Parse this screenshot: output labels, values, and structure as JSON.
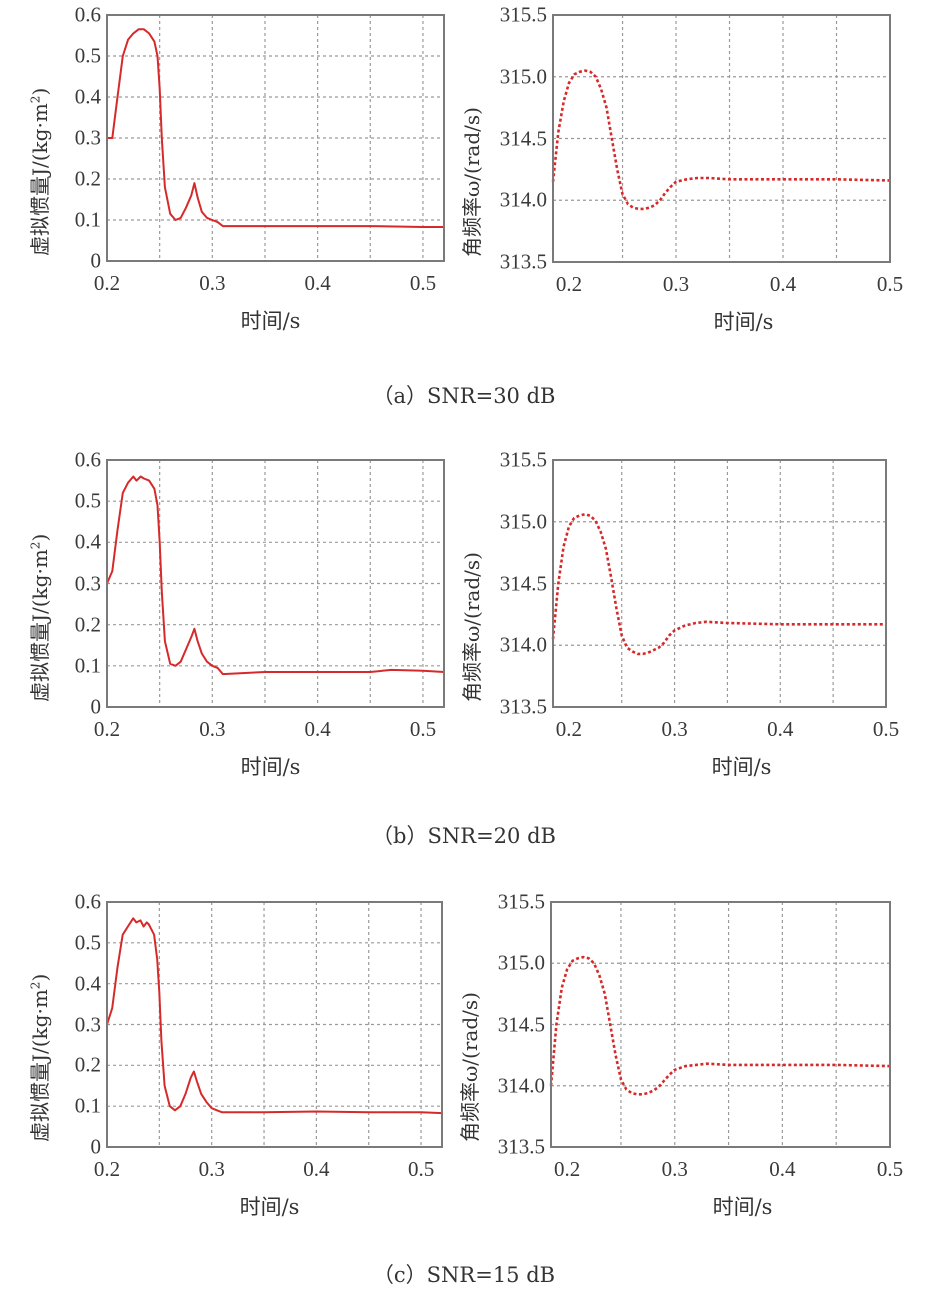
{
  "figure": {
    "panels": [
      {
        "id": "a",
        "caption_prefix": "（a）",
        "caption_text": "SNR=30 dB",
        "left": {
          "ylabel": "虚拟惯量J/(kg·m²)",
          "ylabel_main": "虚拟惯量J/(kg·m",
          "ylabel_sup": "2",
          "ylabel_tail": ")",
          "xlabel": "时间/s",
          "yticks": [
            "0",
            "0.1",
            "0.2",
            "0.3",
            "0.4",
            "0.5",
            "0.6"
          ],
          "xticks": [
            "0.2",
            "0.3",
            "0.4",
            "0.5"
          ]
        },
        "right": {
          "ylabel": "角频率ω/(rad/s)",
          "xlabel": "时间/s",
          "yticks": [
            "313.5",
            "314.0",
            "314.5",
            "315.0",
            "315.5"
          ],
          "xticks": [
            "0.2",
            "0.3",
            "0.4",
            "0.5"
          ]
        }
      },
      {
        "id": "b",
        "caption_prefix": "（b）",
        "caption_text": "SNR=20 dB",
        "left": {
          "ylabel": "虚拟惯量J/(kg·m²)",
          "ylabel_main": "虚拟惯量J/(kg·m",
          "ylabel_sup": "2",
          "ylabel_tail": ")",
          "xlabel": "时间/s",
          "yticks": [
            "0",
            "0.1",
            "0.2",
            "0.3",
            "0.4",
            "0.5",
            "0.6"
          ],
          "xticks": [
            "0.2",
            "0.3",
            "0.4",
            "0.5"
          ]
        },
        "right": {
          "ylabel": "角频率ω/(rad/s)",
          "xlabel": "时间/s",
          "yticks": [
            "313.5",
            "314.0",
            "314.5",
            "315.0",
            "315.5"
          ],
          "xticks": [
            "0.2",
            "0.3",
            "0.4",
            "0.5"
          ]
        }
      },
      {
        "id": "c",
        "caption_prefix": "（c）",
        "caption_text": "SNR=15 dB",
        "left": {
          "ylabel": "虚拟惯量J/(kg·m²)",
          "ylabel_main": "虚拟惯量J/(kg·m",
          "ylabel_sup": "2",
          "ylabel_tail": ")",
          "xlabel": "时间/s",
          "yticks": [
            "0",
            "0.1",
            "0.2",
            "0.3",
            "0.4",
            "0.5",
            "0.6"
          ],
          "xticks": [
            "0.2",
            "0.3",
            "0.4",
            "0.5"
          ]
        },
        "right": {
          "ylabel": "角频率ω/(rad/s)",
          "xlabel": "时间/s",
          "yticks": [
            "313.5",
            "314.0",
            "314.5",
            "315.0",
            "315.5"
          ],
          "xticks": [
            "0.2",
            "0.3",
            "0.4",
            "0.5"
          ]
        }
      }
    ]
  },
  "colors": {
    "line": "#d62a2a",
    "grid": "#9a9a9a",
    "frame": "#7a7a7a",
    "text": "#333333"
  },
  "chart_data": [
    {
      "panel": "a",
      "title": "（a）SNR=30 dB",
      "type": "line",
      "xlabel": "时间/s",
      "ylabel": "虚拟惯量J/(kg·m²)",
      "xlim": [
        0.2,
        0.52
      ],
      "ylim": [
        0,
        0.6
      ],
      "grid": true,
      "line_style": "solid",
      "series": [
        {
          "name": "J",
          "x": [
            0.2,
            0.205,
            0.21,
            0.215,
            0.22,
            0.225,
            0.23,
            0.235,
            0.24,
            0.245,
            0.248,
            0.25,
            0.252,
            0.255,
            0.26,
            0.265,
            0.27,
            0.275,
            0.28,
            0.283,
            0.286,
            0.29,
            0.295,
            0.3,
            0.305,
            0.31,
            0.35,
            0.4,
            0.45,
            0.5,
            0.52
          ],
          "y": [
            0.3,
            0.3,
            0.4,
            0.5,
            0.54,
            0.555,
            0.565,
            0.565,
            0.555,
            0.535,
            0.5,
            0.42,
            0.3,
            0.18,
            0.115,
            0.1,
            0.105,
            0.13,
            0.16,
            0.19,
            0.155,
            0.12,
            0.105,
            0.1,
            0.095,
            0.085,
            0.085,
            0.085,
            0.085,
            0.083,
            0.083
          ]
        }
      ]
    },
    {
      "panel": "a",
      "title": "（a）SNR=30 dB",
      "type": "line",
      "xlabel": "时间/s",
      "ylabel": "角频率ω/(rad/s)",
      "xlim": [
        0.185,
        0.5
      ],
      "ylim": [
        313.5,
        315.5
      ],
      "grid": true,
      "line_style": "dotted",
      "series": [
        {
          "name": "ω",
          "x": [
            0.185,
            0.19,
            0.195,
            0.2,
            0.205,
            0.21,
            0.215,
            0.22,
            0.225,
            0.23,
            0.235,
            0.24,
            0.245,
            0.25,
            0.255,
            0.26,
            0.265,
            0.27,
            0.275,
            0.28,
            0.285,
            0.29,
            0.295,
            0.3,
            0.31,
            0.32,
            0.33,
            0.35,
            0.4,
            0.45,
            0.5
          ],
          "y": [
            314.15,
            314.55,
            314.8,
            314.95,
            315.02,
            315.04,
            315.05,
            315.04,
            315.0,
            314.9,
            314.75,
            314.5,
            314.25,
            314.05,
            313.97,
            313.94,
            313.93,
            313.93,
            313.94,
            313.96,
            314.0,
            314.06,
            314.11,
            314.15,
            314.17,
            314.18,
            314.18,
            314.17,
            314.17,
            314.17,
            314.16
          ]
        }
      ]
    },
    {
      "panel": "b",
      "title": "（b）SNR=20 dB",
      "type": "line",
      "xlabel": "时间/s",
      "ylabel": "虚拟惯量J/(kg·m²)",
      "xlim": [
        0.2,
        0.52
      ],
      "ylim": [
        0,
        0.6
      ],
      "grid": true,
      "line_style": "solid",
      "series": [
        {
          "name": "J",
          "x": [
            0.2,
            0.205,
            0.21,
            0.215,
            0.22,
            0.225,
            0.228,
            0.232,
            0.235,
            0.24,
            0.245,
            0.248,
            0.25,
            0.252,
            0.255,
            0.26,
            0.265,
            0.27,
            0.275,
            0.28,
            0.283,
            0.286,
            0.29,
            0.295,
            0.3,
            0.305,
            0.31,
            0.35,
            0.4,
            0.45,
            0.47,
            0.5,
            0.52
          ],
          "y": [
            0.3,
            0.33,
            0.43,
            0.52,
            0.545,
            0.56,
            0.55,
            0.56,
            0.555,
            0.55,
            0.53,
            0.49,
            0.4,
            0.28,
            0.16,
            0.105,
            0.1,
            0.11,
            0.14,
            0.17,
            0.19,
            0.16,
            0.13,
            0.11,
            0.1,
            0.095,
            0.08,
            0.085,
            0.085,
            0.085,
            0.09,
            0.088,
            0.085
          ]
        }
      ]
    },
    {
      "panel": "b",
      "title": "（b）SNR=20 dB",
      "type": "line",
      "xlabel": "时间/s",
      "ylabel": "角频率ω/(rad/s)",
      "xlim": [
        0.185,
        0.5
      ],
      "ylim": [
        313.5,
        315.5
      ],
      "grid": true,
      "line_style": "dotted",
      "series": [
        {
          "name": "ω",
          "x": [
            0.185,
            0.19,
            0.195,
            0.2,
            0.205,
            0.21,
            0.215,
            0.22,
            0.225,
            0.23,
            0.235,
            0.24,
            0.245,
            0.25,
            0.255,
            0.26,
            0.265,
            0.27,
            0.275,
            0.28,
            0.285,
            0.29,
            0.295,
            0.3,
            0.31,
            0.32,
            0.33,
            0.35,
            0.4,
            0.45,
            0.5
          ],
          "y": [
            314.05,
            314.5,
            314.8,
            314.96,
            315.03,
            315.05,
            315.06,
            315.05,
            315.01,
            314.92,
            314.78,
            314.55,
            314.3,
            314.08,
            313.98,
            313.95,
            313.93,
            313.93,
            313.94,
            313.96,
            313.98,
            314.02,
            314.08,
            314.12,
            314.16,
            314.18,
            314.19,
            314.18,
            314.17,
            314.17,
            314.17
          ]
        }
      ]
    },
    {
      "panel": "c",
      "title": "（c）SNR=15 dB",
      "type": "line",
      "xlabel": "时间/s",
      "ylabel": "虚拟惯量J/(kg·m²)",
      "xlim": [
        0.2,
        0.52
      ],
      "ylim": [
        0,
        0.6
      ],
      "grid": true,
      "line_style": "solid",
      "series": [
        {
          "name": "J",
          "x": [
            0.2,
            0.205,
            0.21,
            0.215,
            0.22,
            0.225,
            0.228,
            0.232,
            0.235,
            0.238,
            0.24,
            0.245,
            0.248,
            0.25,
            0.252,
            0.255,
            0.26,
            0.265,
            0.27,
            0.275,
            0.28,
            0.283,
            0.286,
            0.29,
            0.295,
            0.3,
            0.305,
            0.31,
            0.35,
            0.4,
            0.45,
            0.5,
            0.52
          ],
          "y": [
            0.3,
            0.34,
            0.44,
            0.52,
            0.54,
            0.56,
            0.55,
            0.555,
            0.54,
            0.55,
            0.545,
            0.52,
            0.46,
            0.38,
            0.26,
            0.15,
            0.1,
            0.09,
            0.1,
            0.13,
            0.17,
            0.185,
            0.16,
            0.13,
            0.11,
            0.095,
            0.09,
            0.085,
            0.085,
            0.087,
            0.085,
            0.085,
            0.083
          ]
        }
      ]
    },
    {
      "panel": "c",
      "title": "（c）SNR=15 dB",
      "type": "line",
      "xlabel": "时间/s",
      "ylabel": "角频率ω/(rad/s)",
      "xlim": [
        0.185,
        0.5
      ],
      "ylim": [
        313.5,
        315.5
      ],
      "grid": true,
      "line_style": "dotted",
      "series": [
        {
          "name": "ω",
          "x": [
            0.185,
            0.19,
            0.195,
            0.2,
            0.205,
            0.21,
            0.215,
            0.22,
            0.225,
            0.23,
            0.235,
            0.24,
            0.245,
            0.25,
            0.255,
            0.26,
            0.265,
            0.27,
            0.275,
            0.28,
            0.285,
            0.29,
            0.295,
            0.3,
            0.31,
            0.32,
            0.33,
            0.35,
            0.4,
            0.45,
            0.5
          ],
          "y": [
            314.0,
            314.5,
            314.8,
            314.95,
            315.02,
            315.04,
            315.05,
            315.04,
            315.0,
            314.9,
            314.75,
            314.5,
            314.25,
            314.05,
            313.97,
            313.94,
            313.93,
            313.93,
            313.94,
            313.96,
            313.99,
            314.04,
            314.09,
            314.13,
            314.16,
            314.17,
            314.18,
            314.17,
            314.17,
            314.17,
            314.16
          ]
        }
      ]
    }
  ]
}
